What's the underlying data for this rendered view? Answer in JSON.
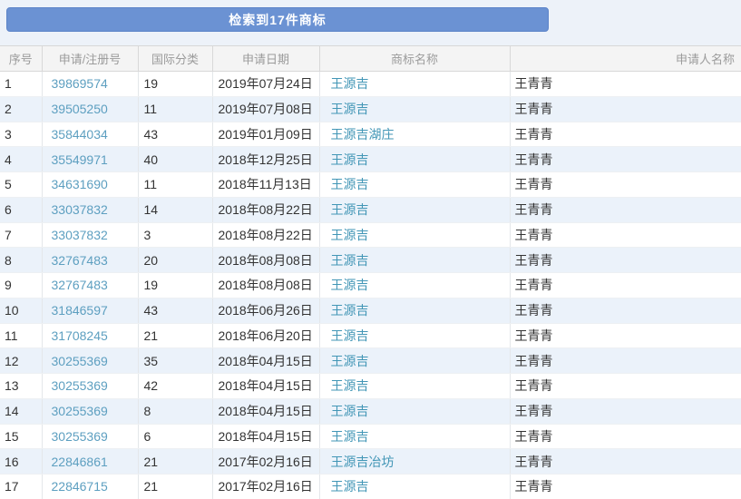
{
  "banner": {
    "text": "检索到17件商标",
    "bg_color": "#6b92d3"
  },
  "colors": {
    "page_background": "#edf2f9",
    "banner_blue": "#6b92d3",
    "registration_link": "#5d9fc0",
    "trademark_link": "#4296b6",
    "header_text": "#9b9b9b",
    "row_stripe": "#ebf2fa"
  },
  "table": {
    "headers": {
      "index": "序号",
      "registration_number": "申请/注册号",
      "intl_class": "国际分类",
      "application_date": "申请日期",
      "trademark_name": "商标名称",
      "applicant_name": "申请人名称"
    },
    "rows": [
      {
        "no": "1",
        "reg_no": "39869574",
        "intl_class": "19",
        "date": "2019年07月24日",
        "trademark": "王源吉",
        "applicant": "王青青"
      },
      {
        "no": "2",
        "reg_no": "39505250",
        "intl_class": "11",
        "date": "2019年07月08日",
        "trademark": "王源吉",
        "applicant": "王青青"
      },
      {
        "no": "3",
        "reg_no": "35844034",
        "intl_class": "43",
        "date": "2019年01月09日",
        "trademark": "王源吉湖庄",
        "applicant": "王青青"
      },
      {
        "no": "4",
        "reg_no": "35549971",
        "intl_class": "40",
        "date": "2018年12月25日",
        "trademark": "王源吉",
        "applicant": "王青青"
      },
      {
        "no": "5",
        "reg_no": "34631690",
        "intl_class": "11",
        "date": "2018年11月13日",
        "trademark": "王源吉",
        "applicant": "王青青"
      },
      {
        "no": "6",
        "reg_no": "33037832",
        "intl_class": "14",
        "date": "2018年08月22日",
        "trademark": "王源吉",
        "applicant": "王青青"
      },
      {
        "no": "7",
        "reg_no": "33037832",
        "intl_class": "3",
        "date": "2018年08月22日",
        "trademark": "王源吉",
        "applicant": "王青青"
      },
      {
        "no": "8",
        "reg_no": "32767483",
        "intl_class": "20",
        "date": "2018年08月08日",
        "trademark": "王源吉",
        "applicant": "王青青"
      },
      {
        "no": "9",
        "reg_no": "32767483",
        "intl_class": "19",
        "date": "2018年08月08日",
        "trademark": "王源吉",
        "applicant": "王青青"
      },
      {
        "no": "10",
        "reg_no": "31846597",
        "intl_class": "43",
        "date": "2018年06月26日",
        "trademark": "王源吉",
        "applicant": "王青青"
      },
      {
        "no": "11",
        "reg_no": "31708245",
        "intl_class": "21",
        "date": "2018年06月20日",
        "trademark": "王源吉",
        "applicant": "王青青"
      },
      {
        "no": "12",
        "reg_no": "30255369",
        "intl_class": "35",
        "date": "2018年04月15日",
        "trademark": "王源吉",
        "applicant": "王青青"
      },
      {
        "no": "13",
        "reg_no": "30255369",
        "intl_class": "42",
        "date": "2018年04月15日",
        "trademark": "王源吉",
        "applicant": "王青青"
      },
      {
        "no": "14",
        "reg_no": "30255369",
        "intl_class": "8",
        "date": "2018年04月15日",
        "trademark": "王源吉",
        "applicant": "王青青"
      },
      {
        "no": "15",
        "reg_no": "30255369",
        "intl_class": "6",
        "date": "2018年04月15日",
        "trademark": "王源吉",
        "applicant": "王青青"
      },
      {
        "no": "16",
        "reg_no": "22846861",
        "intl_class": "21",
        "date": "2017年02月16日",
        "trademark": "王源吉冶坊",
        "applicant": "王青青"
      },
      {
        "no": "17",
        "reg_no": "22846715",
        "intl_class": "21",
        "date": "2017年02月16日",
        "trademark": "王源吉",
        "applicant": "王青青"
      }
    ]
  }
}
